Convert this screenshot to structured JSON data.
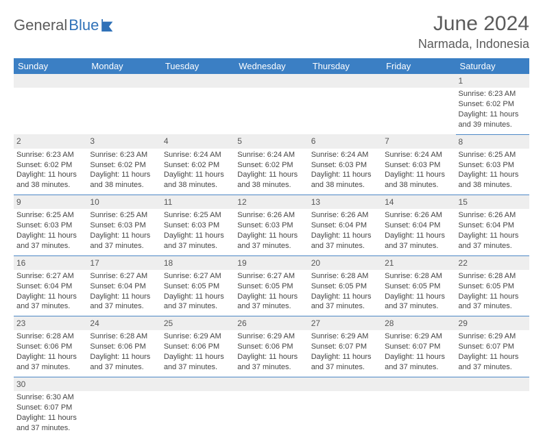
{
  "brand": {
    "text1": "General",
    "text2": "Blue",
    "text1_color": "#5b5b5b",
    "text2_color": "#2f71b8",
    "icon_color": "#2f71b8"
  },
  "title": {
    "month": "June 2024",
    "location": "Narmada, Indonesia"
  },
  "colors": {
    "header_bg": "#3b7fc4",
    "header_text": "#ffffff",
    "daynum_bg": "#eeeeee",
    "row_divider": "#4a86c5",
    "body_text": "#444444"
  },
  "weekdays": [
    "Sunday",
    "Monday",
    "Tuesday",
    "Wednesday",
    "Thursday",
    "Friday",
    "Saturday"
  ],
  "weeks": [
    [
      null,
      null,
      null,
      null,
      null,
      null,
      {
        "day": "1",
        "sunrise": "Sunrise: 6:23 AM",
        "sunset": "Sunset: 6:02 PM",
        "daylight1": "Daylight: 11 hours",
        "daylight2": "and 39 minutes."
      }
    ],
    [
      {
        "day": "2",
        "sunrise": "Sunrise: 6:23 AM",
        "sunset": "Sunset: 6:02 PM",
        "daylight1": "Daylight: 11 hours",
        "daylight2": "and 38 minutes."
      },
      {
        "day": "3",
        "sunrise": "Sunrise: 6:23 AM",
        "sunset": "Sunset: 6:02 PM",
        "daylight1": "Daylight: 11 hours",
        "daylight2": "and 38 minutes."
      },
      {
        "day": "4",
        "sunrise": "Sunrise: 6:24 AM",
        "sunset": "Sunset: 6:02 PM",
        "daylight1": "Daylight: 11 hours",
        "daylight2": "and 38 minutes."
      },
      {
        "day": "5",
        "sunrise": "Sunrise: 6:24 AM",
        "sunset": "Sunset: 6:02 PM",
        "daylight1": "Daylight: 11 hours",
        "daylight2": "and 38 minutes."
      },
      {
        "day": "6",
        "sunrise": "Sunrise: 6:24 AM",
        "sunset": "Sunset: 6:03 PM",
        "daylight1": "Daylight: 11 hours",
        "daylight2": "and 38 minutes."
      },
      {
        "day": "7",
        "sunrise": "Sunrise: 6:24 AM",
        "sunset": "Sunset: 6:03 PM",
        "daylight1": "Daylight: 11 hours",
        "daylight2": "and 38 minutes."
      },
      {
        "day": "8",
        "sunrise": "Sunrise: 6:25 AM",
        "sunset": "Sunset: 6:03 PM",
        "daylight1": "Daylight: 11 hours",
        "daylight2": "and 38 minutes."
      }
    ],
    [
      {
        "day": "9",
        "sunrise": "Sunrise: 6:25 AM",
        "sunset": "Sunset: 6:03 PM",
        "daylight1": "Daylight: 11 hours",
        "daylight2": "and 37 minutes."
      },
      {
        "day": "10",
        "sunrise": "Sunrise: 6:25 AM",
        "sunset": "Sunset: 6:03 PM",
        "daylight1": "Daylight: 11 hours",
        "daylight2": "and 37 minutes."
      },
      {
        "day": "11",
        "sunrise": "Sunrise: 6:25 AM",
        "sunset": "Sunset: 6:03 PM",
        "daylight1": "Daylight: 11 hours",
        "daylight2": "and 37 minutes."
      },
      {
        "day": "12",
        "sunrise": "Sunrise: 6:26 AM",
        "sunset": "Sunset: 6:03 PM",
        "daylight1": "Daylight: 11 hours",
        "daylight2": "and 37 minutes."
      },
      {
        "day": "13",
        "sunrise": "Sunrise: 6:26 AM",
        "sunset": "Sunset: 6:04 PM",
        "daylight1": "Daylight: 11 hours",
        "daylight2": "and 37 minutes."
      },
      {
        "day": "14",
        "sunrise": "Sunrise: 6:26 AM",
        "sunset": "Sunset: 6:04 PM",
        "daylight1": "Daylight: 11 hours",
        "daylight2": "and 37 minutes."
      },
      {
        "day": "15",
        "sunrise": "Sunrise: 6:26 AM",
        "sunset": "Sunset: 6:04 PM",
        "daylight1": "Daylight: 11 hours",
        "daylight2": "and 37 minutes."
      }
    ],
    [
      {
        "day": "16",
        "sunrise": "Sunrise: 6:27 AM",
        "sunset": "Sunset: 6:04 PM",
        "daylight1": "Daylight: 11 hours",
        "daylight2": "and 37 minutes."
      },
      {
        "day": "17",
        "sunrise": "Sunrise: 6:27 AM",
        "sunset": "Sunset: 6:04 PM",
        "daylight1": "Daylight: 11 hours",
        "daylight2": "and 37 minutes."
      },
      {
        "day": "18",
        "sunrise": "Sunrise: 6:27 AM",
        "sunset": "Sunset: 6:05 PM",
        "daylight1": "Daylight: 11 hours",
        "daylight2": "and 37 minutes."
      },
      {
        "day": "19",
        "sunrise": "Sunrise: 6:27 AM",
        "sunset": "Sunset: 6:05 PM",
        "daylight1": "Daylight: 11 hours",
        "daylight2": "and 37 minutes."
      },
      {
        "day": "20",
        "sunrise": "Sunrise: 6:28 AM",
        "sunset": "Sunset: 6:05 PM",
        "daylight1": "Daylight: 11 hours",
        "daylight2": "and 37 minutes."
      },
      {
        "day": "21",
        "sunrise": "Sunrise: 6:28 AM",
        "sunset": "Sunset: 6:05 PM",
        "daylight1": "Daylight: 11 hours",
        "daylight2": "and 37 minutes."
      },
      {
        "day": "22",
        "sunrise": "Sunrise: 6:28 AM",
        "sunset": "Sunset: 6:05 PM",
        "daylight1": "Daylight: 11 hours",
        "daylight2": "and 37 minutes."
      }
    ],
    [
      {
        "day": "23",
        "sunrise": "Sunrise: 6:28 AM",
        "sunset": "Sunset: 6:06 PM",
        "daylight1": "Daylight: 11 hours",
        "daylight2": "and 37 minutes."
      },
      {
        "day": "24",
        "sunrise": "Sunrise: 6:28 AM",
        "sunset": "Sunset: 6:06 PM",
        "daylight1": "Daylight: 11 hours",
        "daylight2": "and 37 minutes."
      },
      {
        "day": "25",
        "sunrise": "Sunrise: 6:29 AM",
        "sunset": "Sunset: 6:06 PM",
        "daylight1": "Daylight: 11 hours",
        "daylight2": "and 37 minutes."
      },
      {
        "day": "26",
        "sunrise": "Sunrise: 6:29 AM",
        "sunset": "Sunset: 6:06 PM",
        "daylight1": "Daylight: 11 hours",
        "daylight2": "and 37 minutes."
      },
      {
        "day": "27",
        "sunrise": "Sunrise: 6:29 AM",
        "sunset": "Sunset: 6:07 PM",
        "daylight1": "Daylight: 11 hours",
        "daylight2": "and 37 minutes."
      },
      {
        "day": "28",
        "sunrise": "Sunrise: 6:29 AM",
        "sunset": "Sunset: 6:07 PM",
        "daylight1": "Daylight: 11 hours",
        "daylight2": "and 37 minutes."
      },
      {
        "day": "29",
        "sunrise": "Sunrise: 6:29 AM",
        "sunset": "Sunset: 6:07 PM",
        "daylight1": "Daylight: 11 hours",
        "daylight2": "and 37 minutes."
      }
    ],
    [
      {
        "day": "30",
        "sunrise": "Sunrise: 6:30 AM",
        "sunset": "Sunset: 6:07 PM",
        "daylight1": "Daylight: 11 hours",
        "daylight2": "and 37 minutes."
      },
      null,
      null,
      null,
      null,
      null,
      null
    ]
  ]
}
